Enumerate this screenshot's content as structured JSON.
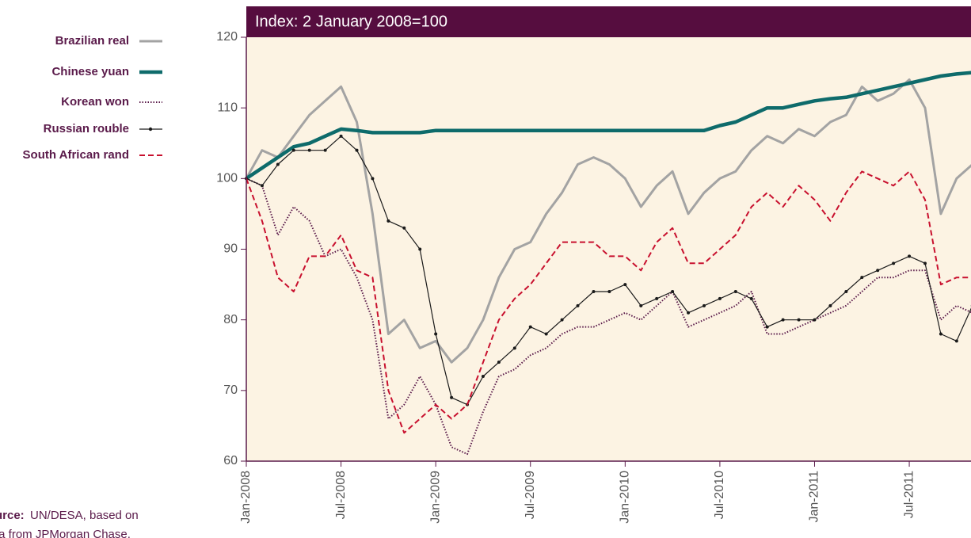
{
  "chart_data": {
    "type": "line",
    "subtitle": "Index: 2 January 2008=100",
    "source_label": "urce:",
    "source_lines": [
      "UN/DESA, based on",
      "ta from JPMorgan Chase."
    ],
    "x": [
      "2008-01",
      "2008-02",
      "2008-03",
      "2008-04",
      "2008-05",
      "2008-06",
      "2008-07",
      "2008-08",
      "2008-09",
      "2008-10",
      "2008-11",
      "2008-12",
      "2009-01",
      "2009-02",
      "2009-03",
      "2009-04",
      "2009-05",
      "2009-06",
      "2009-07",
      "2009-08",
      "2009-09",
      "2009-10",
      "2009-11",
      "2009-12",
      "2010-01",
      "2010-02",
      "2010-03",
      "2010-04",
      "2010-05",
      "2010-06",
      "2010-07",
      "2010-08",
      "2010-09",
      "2010-10",
      "2010-11",
      "2010-12",
      "2011-01",
      "2011-02",
      "2011-03",
      "2011-04",
      "2011-05",
      "2011-06",
      "2011-07",
      "2011-08",
      "2011-09",
      "2011-10",
      "2011-11"
    ],
    "series": [
      {
        "name": "Brazilian real",
        "color": "#a3a3a3",
        "style": "solid",
        "width": 3,
        "values": [
          100,
          104,
          103,
          106,
          109,
          111,
          113,
          108,
          95,
          78,
          80,
          76,
          77,
          74,
          76,
          80,
          86,
          90,
          91,
          95,
          98,
          102,
          103,
          102,
          100,
          96,
          99,
          101,
          95,
          98,
          100,
          101,
          104,
          106,
          105,
          107,
          106,
          108,
          109,
          113,
          111,
          112,
          114,
          110,
          95,
          100,
          102
        ]
      },
      {
        "name": "Chinese yuan",
        "color": "#0e6b6b",
        "style": "solid",
        "width": 4.5,
        "values": [
          100,
          101.5,
          103,
          104.5,
          105,
          106,
          107,
          106.8,
          106.5,
          106.5,
          106.5,
          106.5,
          106.8,
          106.8,
          106.8,
          106.8,
          106.8,
          106.8,
          106.8,
          106.8,
          106.8,
          106.8,
          106.8,
          106.8,
          106.8,
          106.8,
          106.8,
          106.8,
          106.8,
          106.8,
          107.5,
          108,
          109,
          110,
          110,
          110.5,
          111,
          111.3,
          111.5,
          112,
          112.5,
          113,
          113.5,
          114,
          114.5,
          114.8,
          115
        ]
      },
      {
        "name": "Korean won",
        "color": "#5a1a4a",
        "style": "dotted",
        "width": 2,
        "values": [
          100,
          99,
          92,
          96,
          94,
          89,
          90,
          86,
          80,
          66,
          68,
          72,
          68,
          62,
          61,
          67,
          72,
          73,
          75,
          76,
          78,
          79,
          79,
          80,
          81,
          80,
          82,
          84,
          79,
          80,
          81,
          82,
          84,
          78,
          78,
          79,
          80,
          81,
          82,
          84,
          86,
          86,
          87,
          87,
          80,
          82,
          81
        ]
      },
      {
        "name": "Russian rouble",
        "color": "#1a1a1a",
        "style": "marker",
        "width": 1.2,
        "values": [
          100,
          99,
          102,
          104,
          104,
          104,
          106,
          104,
          100,
          94,
          93,
          90,
          78,
          69,
          68,
          72,
          74,
          76,
          79,
          78,
          80,
          82,
          84,
          84,
          85,
          82,
          83,
          84,
          81,
          82,
          83,
          84,
          83,
          79,
          80,
          80,
          80,
          82,
          84,
          86,
          87,
          88,
          89,
          88,
          78,
          77,
          82
        ]
      },
      {
        "name": "South African rand",
        "color": "#c8102e",
        "style": "dashed",
        "width": 2,
        "values": [
          100,
          94,
          86,
          84,
          89,
          89,
          92,
          87,
          86,
          70,
          64,
          66,
          68,
          66,
          68,
          74,
          80,
          83,
          85,
          88,
          91,
          91,
          91,
          89,
          89,
          87,
          91,
          93,
          88,
          88,
          90,
          92,
          96,
          98,
          96,
          99,
          97,
          94,
          98,
          101,
          100,
          99,
          101,
          97,
          85,
          86,
          86
        ]
      }
    ],
    "xlim": [
      "2008-01",
      "2012-01"
    ],
    "xticks": [
      {
        "value": "2008-01",
        "label": "Jan-2008"
      },
      {
        "value": "2008-07",
        "label": "Jul-2008"
      },
      {
        "value": "2009-01",
        "label": "Jan-2009"
      },
      {
        "value": "2009-07",
        "label": "Jul-2009"
      },
      {
        "value": "2010-01",
        "label": "Jan-2010"
      },
      {
        "value": "2010-07",
        "label": "Jul-2010"
      },
      {
        "value": "2011-01",
        "label": "Jan-2011"
      },
      {
        "value": "2011-07",
        "label": "Jul-2011"
      }
    ],
    "ylim": [
      60,
      120
    ],
    "yticks": [
      60,
      70,
      80,
      90,
      100,
      110,
      120
    ]
  }
}
